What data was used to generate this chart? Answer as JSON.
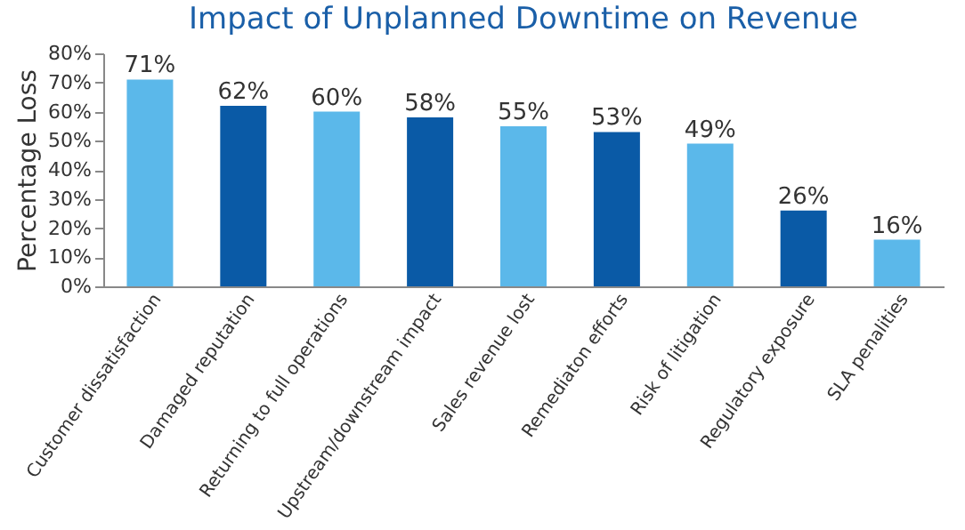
{
  "chart_data": {
    "type": "bar",
    "title": "Impact of Unplanned Downtime on Revenue",
    "ylabel": "Percentage Loss",
    "categories": [
      "Customer dissatisfaction",
      "Damaged reputation",
      "Returning to full operations",
      "Upstream/downstream impact",
      "Sales revenue lost",
      "Remediaton efforts",
      "Risk of litigation",
      "Regulatory exposure",
      "SLA penalities"
    ],
    "values": [
      71,
      62,
      60,
      58,
      55,
      53,
      49,
      26,
      16
    ],
    "colors": [
      "#5bb8ea",
      "#0a5aa6",
      "#5bb8ea",
      "#0a5aa6",
      "#5bb8ea",
      "#0a5aa6",
      "#5bb8ea",
      "#0a5aa6",
      "#5bb8ea"
    ],
    "value_labels": [
      "71%",
      "62%",
      "60%",
      "58%",
      "55%",
      "53%",
      "49%",
      "26%",
      "16%"
    ],
    "ylim": [
      0,
      80
    ],
    "yticks": [
      {
        "value": 0,
        "label": "0%"
      },
      {
        "value": 10,
        "label": "10%"
      },
      {
        "value": 20,
        "label": "20%"
      },
      {
        "value": 30,
        "label": "30%"
      },
      {
        "value": 40,
        "label": "40%"
      },
      {
        "value": 50,
        "label": "50%"
      },
      {
        "value": 60,
        "label": "60%"
      },
      {
        "value": 70,
        "label": "70%"
      },
      {
        "value": 80,
        "label": "80%"
      }
    ],
    "grid": false
  }
}
